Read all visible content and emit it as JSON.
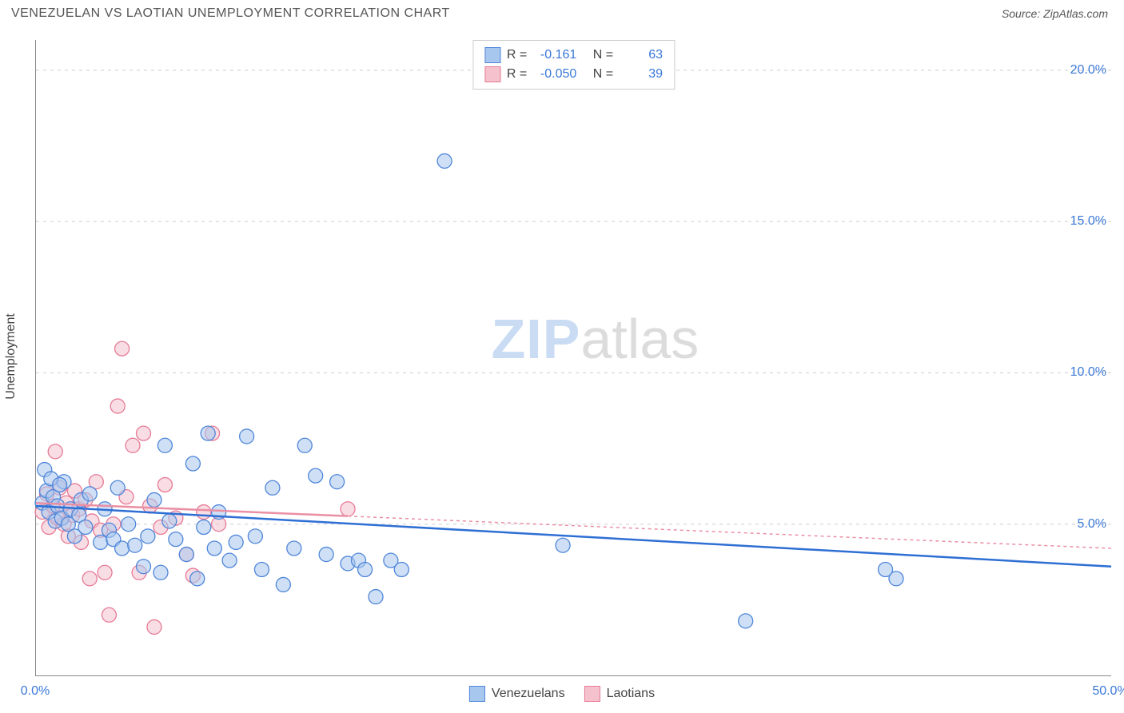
{
  "title": "VENEZUELAN VS LAOTIAN UNEMPLOYMENT CORRELATION CHART",
  "source_prefix": "Source: ",
  "source_name": "ZipAtlas.com",
  "ylabel": "Unemployment",
  "watermark": {
    "zip": "ZIP",
    "atlas": "atlas"
  },
  "chart": {
    "type": "scatter",
    "background_color": "#ffffff",
    "grid_color": "#dddddd",
    "axis_color": "#888888",
    "tick_color": "#3a78d8",
    "xlim": [
      0,
      50
    ],
    "ylim": [
      0,
      21
    ],
    "xticks": [
      {
        "v": 0,
        "label": "0.0%"
      },
      {
        "v": 50,
        "label": "50.0%"
      }
    ],
    "yticks": [
      {
        "v": 5,
        "label": "5.0%"
      },
      {
        "v": 10,
        "label": "10.0%"
      },
      {
        "v": 15,
        "label": "15.0%"
      },
      {
        "v": 20,
        "label": "20.0%"
      }
    ],
    "marker_radius": 9,
    "marker_opacity": 0.55,
    "line_width": 2.5,
    "series": [
      {
        "name": "Venezuelans",
        "color_fill": "#a8c7ef",
        "color_stroke": "#4f86d9",
        "line_color": "#2e6fd4",
        "line_dash": "none",
        "stats": {
          "R": "-0.161",
          "N": "63"
        },
        "trend": {
          "x1": 0,
          "y1": 5.6,
          "x2": 50,
          "y2": 3.6
        },
        "points": [
          [
            0.3,
            5.7
          ],
          [
            0.5,
            6.1
          ],
          [
            0.6,
            5.4
          ],
          [
            0.8,
            5.9
          ],
          [
            0.9,
            5.1
          ],
          [
            1.0,
            5.6
          ],
          [
            1.2,
            5.2
          ],
          [
            1.3,
            6.4
          ],
          [
            1.5,
            5.0
          ],
          [
            1.6,
            5.5
          ],
          [
            1.8,
            4.6
          ],
          [
            2.0,
            5.3
          ],
          [
            2.1,
            5.8
          ],
          [
            2.3,
            4.9
          ],
          [
            2.5,
            6.0
          ],
          [
            3.0,
            4.4
          ],
          [
            3.2,
            5.5
          ],
          [
            3.4,
            4.8
          ],
          [
            3.6,
            4.5
          ],
          [
            3.8,
            6.2
          ],
          [
            4.0,
            4.2
          ],
          [
            4.3,
            5.0
          ],
          [
            4.6,
            4.3
          ],
          [
            5.0,
            3.6
          ],
          [
            5.2,
            4.6
          ],
          [
            5.5,
            5.8
          ],
          [
            5.8,
            3.4
          ],
          [
            6.0,
            7.6
          ],
          [
            6.2,
            5.1
          ],
          [
            6.5,
            4.5
          ],
          [
            7.0,
            4.0
          ],
          [
            7.3,
            7.0
          ],
          [
            7.5,
            3.2
          ],
          [
            7.8,
            4.9
          ],
          [
            8.0,
            8.0
          ],
          [
            8.3,
            4.2
          ],
          [
            8.5,
            5.4
          ],
          [
            9.0,
            3.8
          ],
          [
            9.3,
            4.4
          ],
          [
            9.8,
            7.9
          ],
          [
            10.2,
            4.6
          ],
          [
            10.5,
            3.5
          ],
          [
            11.0,
            6.2
          ],
          [
            11.5,
            3.0
          ],
          [
            12.0,
            4.2
          ],
          [
            12.5,
            7.6
          ],
          [
            13.0,
            6.6
          ],
          [
            13.5,
            4.0
          ],
          [
            14.0,
            6.4
          ],
          [
            14.5,
            3.7
          ],
          [
            15.0,
            3.8
          ],
          [
            15.3,
            3.5
          ],
          [
            15.8,
            2.6
          ],
          [
            16.5,
            3.8
          ],
          [
            17.0,
            3.5
          ],
          [
            19.0,
            17.0
          ],
          [
            24.5,
            4.3
          ],
          [
            33.0,
            1.8
          ],
          [
            39.5,
            3.5
          ],
          [
            40.0,
            3.2
          ],
          [
            0.4,
            6.8
          ],
          [
            0.7,
            6.5
          ],
          [
            1.1,
            6.3
          ]
        ]
      },
      {
        "name": "Laotians",
        "color_fill": "#f4c1cd",
        "color_stroke": "#e77a95",
        "line_color": "#ea8fa4",
        "line_dash": "4 4",
        "stats": {
          "R": "-0.050",
          "N": "39"
        },
        "trend": {
          "x1": 0,
          "y1": 5.7,
          "x2": 50,
          "y2": 4.2
        },
        "points": [
          [
            0.3,
            5.4
          ],
          [
            0.5,
            6.0
          ],
          [
            0.6,
            4.9
          ],
          [
            0.8,
            5.6
          ],
          [
            0.9,
            7.4
          ],
          [
            1.0,
            5.2
          ],
          [
            1.1,
            6.2
          ],
          [
            1.3,
            5.0
          ],
          [
            1.4,
            5.7
          ],
          [
            1.5,
            4.6
          ],
          [
            1.7,
            5.3
          ],
          [
            1.8,
            6.1
          ],
          [
            2.0,
            5.5
          ],
          [
            2.1,
            4.4
          ],
          [
            2.3,
            5.8
          ],
          [
            2.5,
            3.2
          ],
          [
            2.6,
            5.1
          ],
          [
            2.8,
            6.4
          ],
          [
            3.0,
            4.8
          ],
          [
            3.2,
            3.4
          ],
          [
            3.4,
            2.0
          ],
          [
            3.6,
            5.0
          ],
          [
            3.8,
            8.9
          ],
          [
            4.0,
            10.8
          ],
          [
            4.2,
            5.9
          ],
          [
            4.5,
            7.6
          ],
          [
            4.8,
            3.4
          ],
          [
            5.0,
            8.0
          ],
          [
            5.3,
            5.6
          ],
          [
            5.5,
            1.6
          ],
          [
            5.8,
            4.9
          ],
          [
            6.0,
            6.3
          ],
          [
            6.5,
            5.2
          ],
          [
            7.0,
            4.0
          ],
          [
            7.3,
            3.3
          ],
          [
            7.8,
            5.4
          ],
          [
            8.2,
            8.0
          ],
          [
            8.5,
            5.0
          ],
          [
            14.5,
            5.5
          ]
        ]
      }
    ]
  },
  "legend_labels": {
    "R": "R =",
    "N": "N ="
  }
}
